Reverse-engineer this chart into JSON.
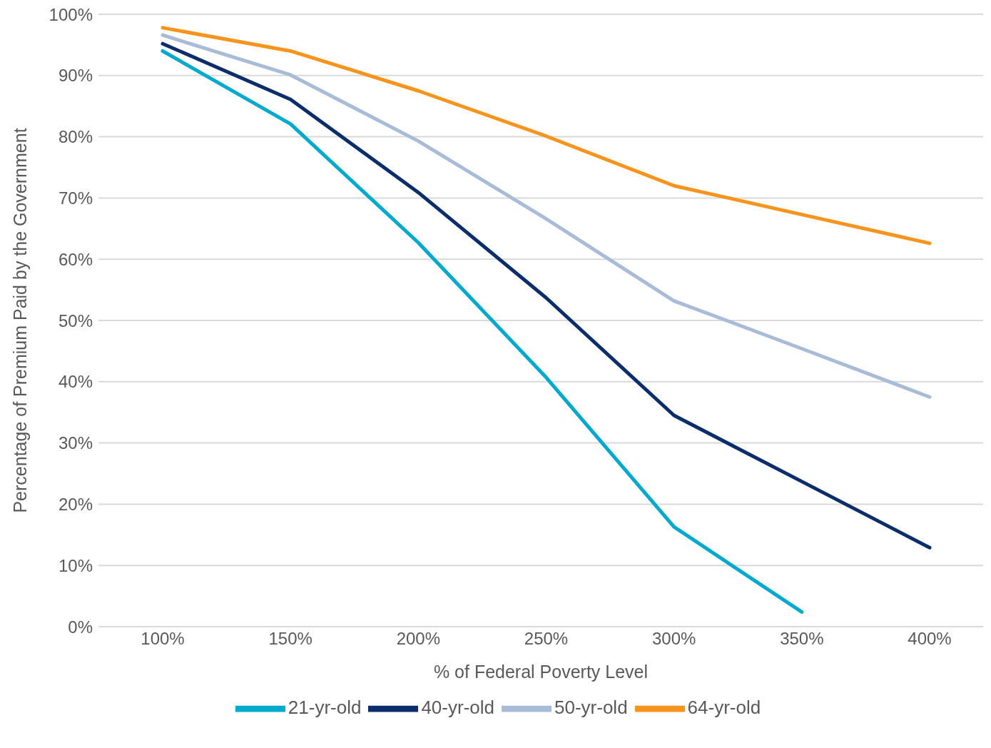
{
  "chart_data": {
    "type": "line",
    "xlabel": "% of Federal Poverty Level",
    "ylabel": "Percentage of Premium Paid by the Government",
    "categories": [
      "100%",
      "150%",
      "200%",
      "250%",
      "300%",
      "350%",
      "400%"
    ],
    "series": [
      {
        "name": "21-yr-old",
        "color": "#00a9ce",
        "values": [
          94.0,
          82.1,
          62.7,
          40.7,
          16.3,
          2.4,
          null
        ]
      },
      {
        "name": "40-yr-old",
        "color": "#0b2d6b",
        "values": [
          95.2,
          86.1,
          70.9,
          53.7,
          34.5,
          23.7,
          12.9
        ]
      },
      {
        "name": "50-yr-old",
        "color": "#a8bcd8",
        "values": [
          96.6,
          90.1,
          79.3,
          66.6,
          53.2,
          45.4,
          37.5
        ]
      },
      {
        "name": "64-yr-old",
        "color": "#f7941d",
        "values": [
          97.8,
          94.0,
          87.5,
          80.1,
          72.0,
          67.3,
          62.6
        ]
      }
    ],
    "ylim": [
      0,
      100
    ],
    "yticks": [
      {
        "value": 0,
        "label": "0%"
      },
      {
        "value": 10,
        "label": "10%"
      },
      {
        "value": 20,
        "label": "20%"
      },
      {
        "value": 30,
        "label": "30%"
      },
      {
        "value": 40,
        "label": "40%"
      },
      {
        "value": 50,
        "label": "50%"
      },
      {
        "value": 60,
        "label": "60%"
      },
      {
        "value": 70,
        "label": "70%"
      },
      {
        "value": 80,
        "label": "80%"
      },
      {
        "value": 90,
        "label": "90%"
      },
      {
        "value": 100,
        "label": "100%"
      }
    ],
    "grid": "y",
    "legend": "bottom",
    "marker": "none",
    "line_style": "solid"
  }
}
